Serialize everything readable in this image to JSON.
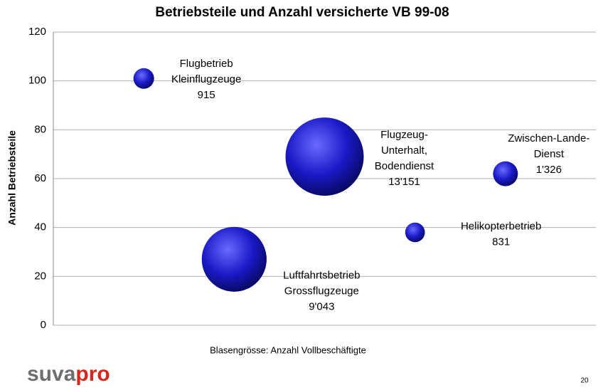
{
  "chart_data": {
    "type": "bubble",
    "title": "Betriebsteile und Anzahl versicherte VB 99-08",
    "y_label": "Anzahl Betriebsteile",
    "note": "Blasengrösse:  Anzahl Vollbeschäftigte",
    "logo": [
      "suva",
      "pro"
    ],
    "page_number": "20",
    "ylim": [
      0,
      120
    ],
    "yticks": [
      0,
      20,
      40,
      60,
      80,
      100,
      120
    ],
    "grid": true,
    "xlim": [
      0,
      6
    ],
    "color": "#1a1ac8",
    "labels": [
      [
        "Flugbetrieb",
        "Kleinflugzeuge"
      ],
      [
        "Luftfahrtsbetrieb",
        "Grossflugzeuge"
      ],
      [
        "Flugzeug-",
        "Unterhalt,",
        "Bodendienst"
      ],
      [
        "Helikopterbetrieb"
      ],
      [
        "Zwischen-Lande-",
        "Dienst"
      ]
    ],
    "x": [
      1,
      2,
      3,
      4,
      5
    ],
    "values": [
      101,
      27,
      69,
      38,
      62
    ],
    "sizes": [
      915,
      9043,
      13151,
      831,
      1326
    ],
    "size_labels": [
      "915",
      "9'043",
      "13'151",
      "831",
      "1'326"
    ]
  }
}
